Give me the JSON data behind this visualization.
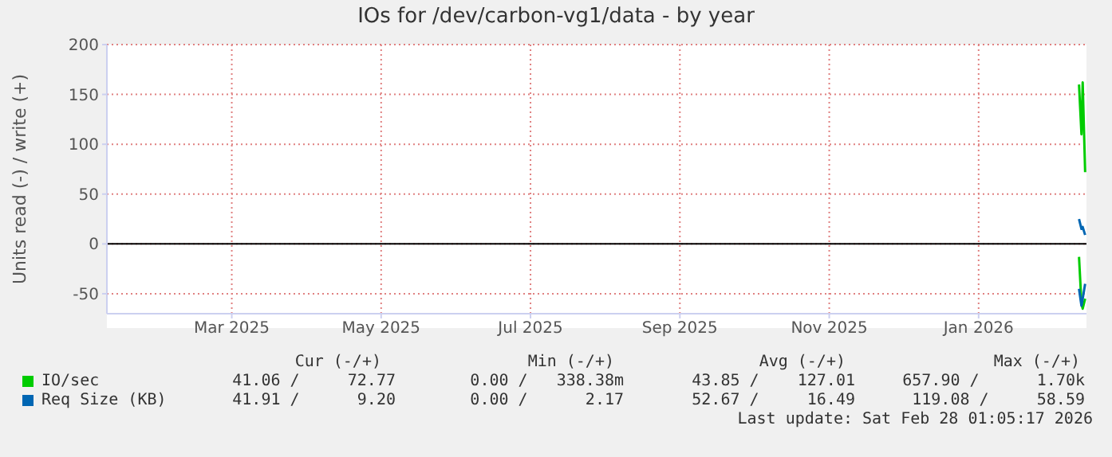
{
  "chart_data": {
    "type": "line",
    "title": "IOs for /dev/carbon-vg1/data - by year",
    "ylabel": "Units read (-) / write (+)",
    "xlim": [
      "2025-01-24",
      "2026-02-28T01:05"
    ],
    "xticks": [
      {
        "value": "2025-03-16",
        "label": "Mar 2025"
      },
      {
        "value": "2025-05-16",
        "label": "May 2025"
      },
      {
        "value": "2025-07-16",
        "label": "Jul 2025"
      },
      {
        "value": "2025-09-15",
        "label": "Sep 2025"
      },
      {
        "value": "2025-11-15",
        "label": "Nov 2025"
      },
      {
        "value": "2026-01-15",
        "label": "Jan 2026"
      }
    ],
    "ylim": [
      -70,
      200
    ],
    "yticks": [
      -50,
      0,
      50,
      100,
      150,
      200
    ],
    "grid": true,
    "marker": "none",
    "legend": "bottom",
    "ref_lines": [
      {
        "axis": "y",
        "value": 0,
        "color": "#000000"
      }
    ],
    "series": [
      {
        "name": "IO/sec",
        "color": "#00cc00",
        "x": [
          "2026-02-25",
          "2026-02-26",
          "2026-02-26T12:00",
          "2026-02-27T12:00"
        ],
        "values": [
          160,
          110,
          162,
          72
        ]
      },
      {
        "color": "#00cc00",
        "x": [
          "2026-02-25",
          "2026-02-26",
          "2026-02-26T12:00",
          "2026-02-27T12:00"
        ],
        "values": [
          -13,
          -60,
          -65,
          -55
        ]
      },
      {
        "color": "#0066b3",
        "x": [
          "2026-02-25",
          "2026-02-26",
          "2026-02-26T12:00",
          "2026-02-27T12:00"
        ],
        "values": [
          -45,
          -62,
          -55,
          -40
        ]
      },
      {
        "name": "Req Size (KB)",
        "color": "#0066b3",
        "x": [
          "2026-02-25",
          "2026-02-26",
          "2026-02-26T12:00",
          "2026-02-27T12:00"
        ],
        "values": [
          25,
          15,
          17,
          9
        ]
      }
    ],
    "annotations": [
      "Cur (-/+)",
      "Min (-/+)",
      "Avg (-/+)",
      "Max (-/+)",
      "41.06 /     72.77",
      "0.00 /   338.38m",
      "43.85 /    127.01",
      "657.90 /      1.70k",
      "41.91 /      9.20",
      "0.00 /      2.17",
      "52.67 /     16.49",
      "119.08 /     58.59",
      "Last update: Sat Feb 28 01:05:17 2026"
    ]
  }
}
